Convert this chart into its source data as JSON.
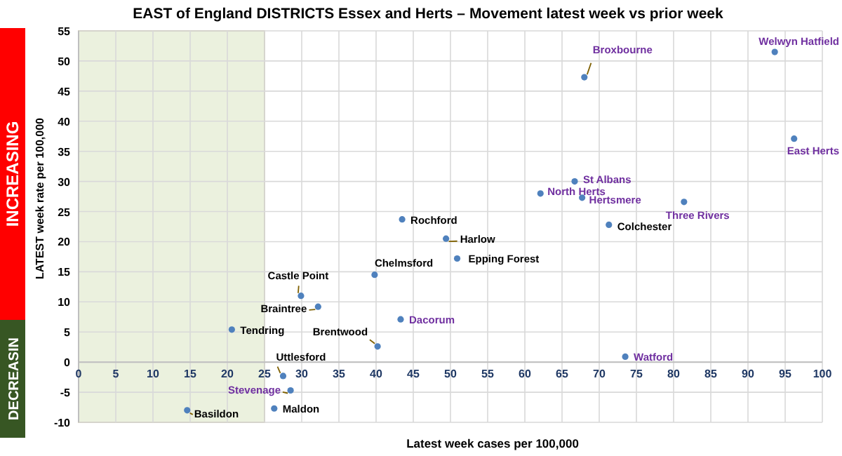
{
  "chart_data": {
    "type": "scatter",
    "title": "EAST of England DISTRICTS Essex and Herts – Movement latest week vs prior week",
    "xlabel": "Latest week cases per 100,000",
    "ylabel": "LATEST week rate per 100,000",
    "series": [
      {
        "color": "#4f81bd",
        "x": [
          93.6,
          68,
          96.2,
          66.7,
          62.1,
          67.7,
          81.4,
          71.3,
          49.4,
          50.9,
          73.5,
          43.5,
          39.8,
          29.9,
          32.2,
          43.3,
          20.6,
          40.2,
          27.5,
          28.5,
          26.3,
          14.6
        ],
        "values": [
          51.5,
          47.3,
          37.1,
          30,
          28,
          27.3,
          26.6,
          22.8,
          20.5,
          17.2,
          0.9,
          23.7,
          14.5,
          11,
          9.2,
          7.1,
          5.4,
          2.6,
          -2.3,
          -4.7,
          -7.7,
          -8
        ]
      }
    ],
    "annotations": [
      {
        "text": "Welwyn Hatfield",
        "x": 93.6,
        "y": 51.5
      },
      {
        "text": "Broxbourne",
        "x": 68,
        "y": 47.3
      },
      {
        "text": "East Herts",
        "x": 96.2,
        "y": 37.1
      },
      {
        "text": "St Albans",
        "x": 66.7,
        "y": 30
      },
      {
        "text": "North Herts",
        "x": 62.1,
        "y": 28
      },
      {
        "text": "Hertsmere",
        "x": 67.7,
        "y": 27.3
      },
      {
        "text": "Three Rivers",
        "x": 81.4,
        "y": 26.6
      },
      {
        "text": "Colchester",
        "x": 71.3,
        "y": 22.8
      },
      {
        "text": "Harlow",
        "x": 49.4,
        "y": 20.5
      },
      {
        "text": "Epping Forest",
        "x": 50.9,
        "y": 17.2
      },
      {
        "text": "Watford",
        "x": 73.5,
        "y": 0.9
      },
      {
        "text": "Rochford",
        "x": 43.5,
        "y": 23.7
      },
      {
        "text": "Chelmsford",
        "x": 39.8,
        "y": 14.5
      },
      {
        "text": "Castle Point",
        "x": 29.9,
        "y": 11
      },
      {
        "text": "Braintree",
        "x": 32.2,
        "y": 9.2
      },
      {
        "text": "Dacorum",
        "x": 43.3,
        "y": 7.1
      },
      {
        "text": "Tendring",
        "x": 20.6,
        "y": 5.4
      },
      {
        "text": "Brentwood",
        "x": 40.2,
        "y": 2.6
      },
      {
        "text": "Uttlesford",
        "x": 27.5,
        "y": -2.3
      },
      {
        "text": "Stevenage",
        "x": 28.5,
        "y": -4.7
      },
      {
        "text": "Maldon",
        "x": 26.3,
        "y": -7.7
      },
      {
        "text": "Basildon",
        "x": 14.6,
        "y": -8
      },
      "INCREASING",
      "DECREASIN"
    ],
    "bands": [
      {
        "axis": "x",
        "from": 0,
        "to": 25,
        "color": "#ebf1de"
      }
    ],
    "xlim": [
      0,
      100
    ],
    "xticks": [
      0,
      5,
      10,
      15,
      20,
      25,
      30,
      35,
      40,
      45,
      50,
      55,
      60,
      65,
      70,
      75,
      80,
      85,
      90,
      95,
      100
    ],
    "ylim": [
      -10,
      55
    ],
    "yticks": [
      -10,
      -5,
      0,
      5,
      10,
      15,
      20,
      25,
      30,
      35,
      40,
      45,
      50,
      55
    ],
    "grid": true,
    "marker": "circle"
  }
}
